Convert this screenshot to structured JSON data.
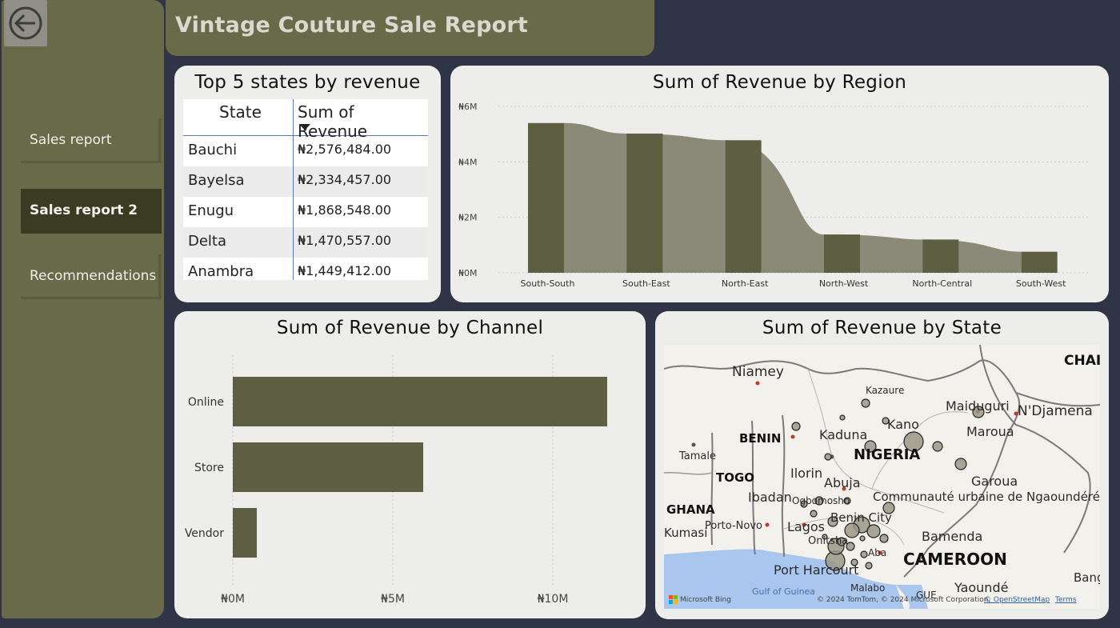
{
  "app": {
    "title": "Vintage Couture Sale Report",
    "back_icon": "arrow-left-circle-icon"
  },
  "nav": {
    "items": [
      {
        "label": "Sales report",
        "active": false
      },
      {
        "label": "Sales report 2",
        "active": true
      },
      {
        "label": "Recommendations",
        "active": false
      }
    ]
  },
  "top_states": {
    "title": "Top 5 states by revenue",
    "columns": [
      "State",
      "Sum of Revenue"
    ],
    "sort": "descending",
    "rows": [
      {
        "state": "Bauchi",
        "revenue": "₦2,576,484.00"
      },
      {
        "state": "Bayelsa",
        "revenue": "₦2,334,457.00"
      },
      {
        "state": "Enugu",
        "revenue": "₦1,868,548.00"
      },
      {
        "state": "Delta",
        "revenue": "₦1,470,557.00"
      },
      {
        "state": "Anambra",
        "revenue": "₦1,449,412.00"
      }
    ]
  },
  "chart_data": [
    {
      "type": "bar",
      "title": "Sum of Revenue by Region",
      "categories": [
        "South-South",
        "South-East",
        "North-East",
        "North-West",
        "North-Central",
        "South-West"
      ],
      "values": [
        5400000,
        5020000,
        4780000,
        1380000,
        1200000,
        760000
      ],
      "ylim": [
        0,
        6000000
      ],
      "yticks": [
        "₦0M",
        "₦2M",
        "₦4M",
        "₦6M"
      ],
      "grid": true,
      "colors": {
        "bar": "#5e5e42",
        "ribbon": "#8b8a78"
      }
    },
    {
      "type": "bar",
      "orientation": "horizontal",
      "title": "Sum of Revenue by Channel",
      "categories": [
        "Online",
        "Store",
        "Vendor"
      ],
      "values": [
        11700000,
        5950000,
        750000
      ],
      "xlim": [
        0,
        12500000
      ],
      "xticks": [
        "₦0M",
        "₦5M",
        "₦10M"
      ],
      "grid": true,
      "colors": {
        "bar": "#5e5e42"
      }
    }
  ],
  "map": {
    "title": "Sum of Revenue by State",
    "labels": {
      "niamey": "Niamey",
      "kazaure": "Kazaure",
      "maiduguri": "Maiduguri",
      "ndjamena": "N'Djamena",
      "kano": "Kano",
      "kaduna": "Kaduna",
      "benin": "BENIN",
      "maroua": "Maroua",
      "nigeria": "NIGERIA",
      "tamale": "Tamale",
      "ilorin": "Ilorin",
      "togo": "TOGO",
      "abuja": "Abuja",
      "garoua": "Garoua",
      "ibadan": "Ibadan",
      "ogbomosho": "Ogbomosho",
      "communaute": "Communauté urbaine de Ngaoundéré",
      "ghana": "GHANA",
      "benin_city": "Benin City",
      "kumasi": "Kumasi",
      "porto_novo": "Porto-Novo",
      "lagos": "Lagos",
      "bamenda": "Bamenda",
      "onitsha": "Onitsha",
      "aba": "Aba",
      "cameroon": "CAMEROON",
      "port_harcourt": "Port Harcourt",
      "yaounde": "Yaoundé",
      "malabo": "Malabo",
      "gulf": "Gulf of Guinea",
      "chad": "CHAI",
      "bangui": "Bangu",
      "gue": "GUE"
    },
    "attribution": {
      "brand": "Microsoft Bing",
      "text": "© 2024 TomTom, © 2024 Microsoft Corporation,",
      "osm": "© OpenStreetMap",
      "terms": "Terms"
    },
    "colors": {
      "bubble": "#9a9888",
      "water": "#a9c7ee",
      "land": "#f3f1ec"
    }
  }
}
